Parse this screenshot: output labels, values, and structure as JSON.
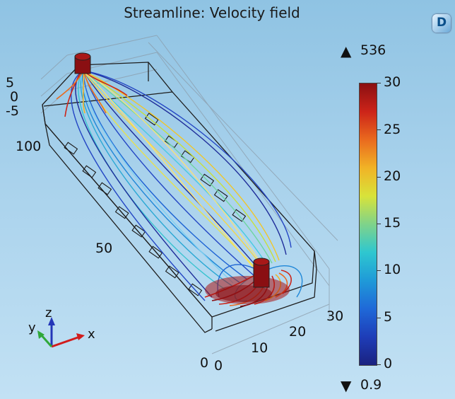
{
  "title": "Streamline: Velocity field",
  "colorbar": {
    "max_marker": "536",
    "min_marker": "0.9",
    "labels": [
      "30",
      "25",
      "20",
      "15",
      "10",
      "5",
      "0"
    ],
    "colormap": "rainbow (blue-cyan-yellow-red)"
  },
  "axes": {
    "z_ticks": [
      "5",
      "0",
      "-5"
    ],
    "y_ticks": [
      "100",
      "50",
      "0"
    ],
    "x_ticks": [
      "0",
      "10",
      "20",
      "30"
    ]
  },
  "triad": {
    "x": "x",
    "y": "y",
    "z": "z"
  },
  "colors": {
    "background_top": "#8fc3e3",
    "background_bottom": "#c2e1f4",
    "inlet_outlet": "#8a0f12"
  }
}
